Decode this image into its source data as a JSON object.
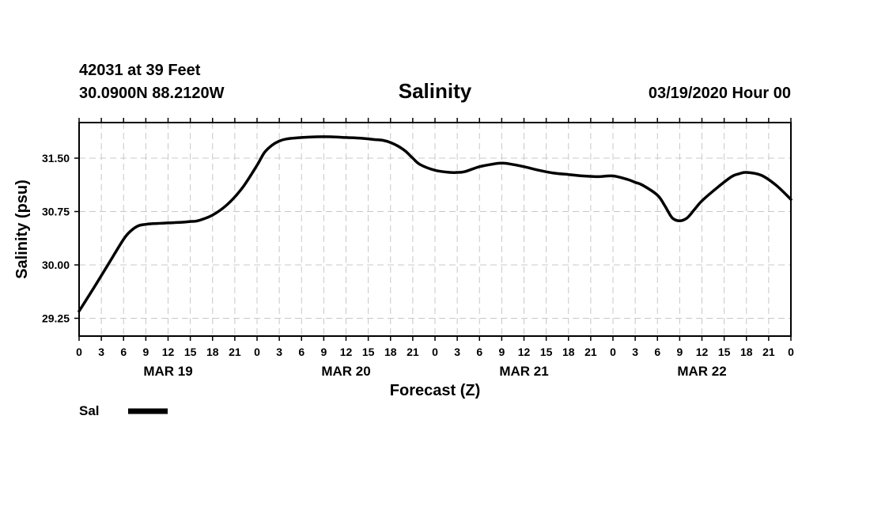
{
  "header": {
    "station_line": "42031 at 39 Feet",
    "position_line": "30.0900N 88.2120W",
    "timestamp": "03/19/2020 Hour 00"
  },
  "chart_data": {
    "type": "line",
    "title": "Salinity",
    "xlabel": "Forecast (Z)",
    "ylabel": "Salinity (psu)",
    "xlim": [
      0,
      96
    ],
    "ylim": [
      29.0,
      32.0
    ],
    "grid": true,
    "legend_position": "bottom-left",
    "y_ticks": [
      {
        "value": 29.25,
        "label": "29.25"
      },
      {
        "value": 30.0,
        "label": "30.00"
      },
      {
        "value": 30.75,
        "label": "30.75"
      },
      {
        "value": 31.5,
        "label": "31.50"
      }
    ],
    "x_ticks": [
      {
        "hour": 0,
        "label": "0"
      },
      {
        "hour": 3,
        "label": "3"
      },
      {
        "hour": 6,
        "label": "6"
      },
      {
        "hour": 9,
        "label": "9"
      },
      {
        "hour": 12,
        "label": "12"
      },
      {
        "hour": 15,
        "label": "15"
      },
      {
        "hour": 18,
        "label": "18"
      },
      {
        "hour": 21,
        "label": "21"
      },
      {
        "hour": 24,
        "label": "0"
      },
      {
        "hour": 27,
        "label": "3"
      },
      {
        "hour": 30,
        "label": "6"
      },
      {
        "hour": 33,
        "label": "9"
      },
      {
        "hour": 36,
        "label": "12"
      },
      {
        "hour": 39,
        "label": "15"
      },
      {
        "hour": 42,
        "label": "18"
      },
      {
        "hour": 45,
        "label": "21"
      },
      {
        "hour": 48,
        "label": "0"
      },
      {
        "hour": 51,
        "label": "3"
      },
      {
        "hour": 54,
        "label": "6"
      },
      {
        "hour": 57,
        "label": "9"
      },
      {
        "hour": 60,
        "label": "12"
      },
      {
        "hour": 63,
        "label": "15"
      },
      {
        "hour": 66,
        "label": "18"
      },
      {
        "hour": 69,
        "label": "21"
      },
      {
        "hour": 72,
        "label": "0"
      },
      {
        "hour": 75,
        "label": "3"
      },
      {
        "hour": 78,
        "label": "6"
      },
      {
        "hour": 81,
        "label": "9"
      },
      {
        "hour": 84,
        "label": "12"
      },
      {
        "hour": 87,
        "label": "15"
      },
      {
        "hour": 90,
        "label": "18"
      },
      {
        "hour": 93,
        "label": "21"
      },
      {
        "hour": 96,
        "label": "0"
      }
    ],
    "day_labels": [
      {
        "hour": 12,
        "label": "MAR 19"
      },
      {
        "hour": 36,
        "label": "MAR 20"
      },
      {
        "hour": 60,
        "label": "MAR 21"
      },
      {
        "hour": 84,
        "label": "MAR 22"
      }
    ],
    "series": [
      {
        "name": "Sal",
        "color": "#000000",
        "x": [
          0,
          2,
          4,
          6,
          7,
          8,
          9,
          10,
          12,
          14,
          15,
          16,
          18,
          20,
          22,
          24,
          25,
          26,
          27,
          28,
          30,
          32,
          34,
          36,
          38,
          40,
          41,
          42,
          43,
          44,
          45,
          46,
          48,
          50,
          51,
          52,
          54,
          56,
          57,
          58,
          60,
          62,
          64,
          66,
          68,
          70,
          72,
          74,
          75,
          76,
          78,
          79,
          80,
          81,
          82,
          83,
          84,
          86,
          88,
          89,
          90,
          92,
          94,
          96
        ],
        "y": [
          29.35,
          29.68,
          30.02,
          30.36,
          30.48,
          30.55,
          30.57,
          30.58,
          30.59,
          30.6,
          30.61,
          30.62,
          30.7,
          30.85,
          31.08,
          31.4,
          31.58,
          31.68,
          31.74,
          31.77,
          31.79,
          31.8,
          31.8,
          31.79,
          31.78,
          31.76,
          31.75,
          31.72,
          31.67,
          31.6,
          31.5,
          31.41,
          31.33,
          31.3,
          31.3,
          31.31,
          31.38,
          31.42,
          31.43,
          31.42,
          31.38,
          31.33,
          31.29,
          31.27,
          31.25,
          31.24,
          31.25,
          31.2,
          31.16,
          31.12,
          30.98,
          30.83,
          30.66,
          30.62,
          30.66,
          30.78,
          30.9,
          31.08,
          31.24,
          31.28,
          31.3,
          31.26,
          31.12,
          30.92
        ]
      }
    ]
  }
}
